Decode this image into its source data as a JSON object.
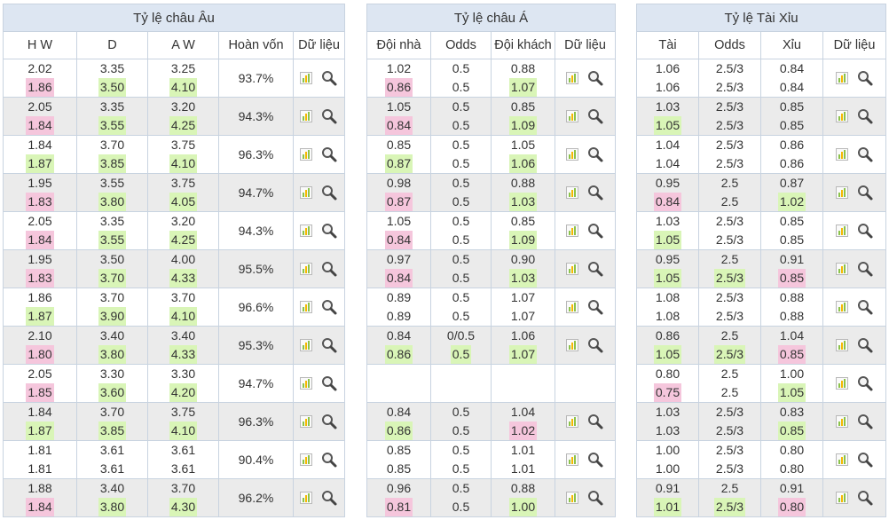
{
  "panels": {
    "eu": {
      "title": "Tỷ lệ châu Âu",
      "headers": [
        "H W",
        "D",
        "A W",
        "Hoàn vốn",
        "Dữ liệu"
      ],
      "rows": [
        {
          "c": [
            [
              "2.02",
              "1.86"
            ],
            [
              "3.35",
              "3.50"
            ],
            [
              "3.25",
              "4.10"
            ]
          ],
          "hl": [
            [
              "",
              "pink"
            ],
            [
              "",
              "green"
            ],
            [
              "",
              "green"
            ]
          ],
          "pct": "93.7%"
        },
        {
          "c": [
            [
              "2.05",
              "1.84"
            ],
            [
              "3.35",
              "3.55"
            ],
            [
              "3.20",
              "4.25"
            ]
          ],
          "hl": [
            [
              "",
              "pink"
            ],
            [
              "",
              "green"
            ],
            [
              "",
              "green"
            ]
          ],
          "pct": "94.3%"
        },
        {
          "c": [
            [
              "1.84",
              "1.87"
            ],
            [
              "3.70",
              "3.85"
            ],
            [
              "3.75",
              "4.10"
            ]
          ],
          "hl": [
            [
              "",
              "green"
            ],
            [
              "",
              "green"
            ],
            [
              "",
              "green"
            ]
          ],
          "pct": "96.3%"
        },
        {
          "c": [
            [
              "1.95",
              "1.83"
            ],
            [
              "3.55",
              "3.80"
            ],
            [
              "3.75",
              "4.05"
            ]
          ],
          "hl": [
            [
              "",
              "pink"
            ],
            [
              "",
              "green"
            ],
            [
              "",
              "green"
            ]
          ],
          "pct": "94.7%"
        },
        {
          "c": [
            [
              "2.05",
              "1.84"
            ],
            [
              "3.35",
              "3.55"
            ],
            [
              "3.20",
              "4.25"
            ]
          ],
          "hl": [
            [
              "",
              "pink"
            ],
            [
              "",
              "green"
            ],
            [
              "",
              "green"
            ]
          ],
          "pct": "94.3%"
        },
        {
          "c": [
            [
              "1.95",
              "1.83"
            ],
            [
              "3.50",
              "3.70"
            ],
            [
              "4.00",
              "4.33"
            ]
          ],
          "hl": [
            [
              "",
              "pink"
            ],
            [
              "",
              "green"
            ],
            [
              "",
              "green"
            ]
          ],
          "pct": "95.5%"
        },
        {
          "c": [
            [
              "1.86",
              "1.87"
            ],
            [
              "3.70",
              "3.90"
            ],
            [
              "3.70",
              "4.10"
            ]
          ],
          "hl": [
            [
              "",
              "green"
            ],
            [
              "",
              "green"
            ],
            [
              "",
              "green"
            ]
          ],
          "pct": "96.6%"
        },
        {
          "c": [
            [
              "2.10",
              "1.80"
            ],
            [
              "3.40",
              "3.80"
            ],
            [
              "3.40",
              "4.33"
            ]
          ],
          "hl": [
            [
              "",
              "pink"
            ],
            [
              "",
              "green"
            ],
            [
              "",
              "green"
            ]
          ],
          "pct": "95.3%"
        },
        {
          "c": [
            [
              "2.05",
              "1.85"
            ],
            [
              "3.30",
              "3.60"
            ],
            [
              "3.30",
              "4.20"
            ]
          ],
          "hl": [
            [
              "",
              "pink"
            ],
            [
              "",
              "green"
            ],
            [
              "",
              "green"
            ]
          ],
          "pct": "94.7%"
        },
        {
          "c": [
            [
              "1.84",
              "1.87"
            ],
            [
              "3.70",
              "3.85"
            ],
            [
              "3.75",
              "4.10"
            ]
          ],
          "hl": [
            [
              "",
              "green"
            ],
            [
              "",
              "green"
            ],
            [
              "",
              "green"
            ]
          ],
          "pct": "96.3%"
        },
        {
          "c": [
            [
              "1.81",
              "1.81"
            ],
            [
              "3.61",
              "3.61"
            ],
            [
              "3.61",
              "3.61"
            ]
          ],
          "hl": [
            [
              "",
              ""
            ],
            [
              "",
              ""
            ],
            [
              "",
              ""
            ]
          ],
          "pct": "90.4%"
        },
        {
          "c": [
            [
              "1.88",
              "1.84"
            ],
            [
              "3.40",
              "3.80"
            ],
            [
              "3.70",
              "4.30"
            ]
          ],
          "hl": [
            [
              "",
              "pink"
            ],
            [
              "",
              "green"
            ],
            [
              "",
              "green"
            ]
          ],
          "pct": "96.2%"
        }
      ]
    },
    "asia": {
      "title": "Tỷ lệ châu Á",
      "headers": [
        "Đội nhà",
        "Odds",
        "Đội khách",
        "Dữ liệu"
      ],
      "rows": [
        {
          "c": [
            [
              "1.02",
              "0.86"
            ],
            [
              "0.5",
              "0.5"
            ],
            [
              "0.88",
              "1.07"
            ]
          ],
          "hl": [
            [
              "",
              "pink"
            ],
            [
              "",
              ""
            ],
            [
              "",
              "green"
            ]
          ],
          "tools": true
        },
        {
          "c": [
            [
              "1.05",
              "0.84"
            ],
            [
              "0.5",
              "0.5"
            ],
            [
              "0.85",
              "1.09"
            ]
          ],
          "hl": [
            [
              "",
              "pink"
            ],
            [
              "",
              ""
            ],
            [
              "",
              "green"
            ]
          ],
          "tools": true
        },
        {
          "c": [
            [
              "0.85",
              "0.87"
            ],
            [
              "0.5",
              "0.5"
            ],
            [
              "1.05",
              "1.06"
            ]
          ],
          "hl": [
            [
              "",
              "green"
            ],
            [
              "",
              ""
            ],
            [
              "",
              "green"
            ]
          ],
          "tools": true
        },
        {
          "c": [
            [
              "0.98",
              "0.87"
            ],
            [
              "0.5",
              "0.5"
            ],
            [
              "0.88",
              "1.03"
            ]
          ],
          "hl": [
            [
              "",
              "pink"
            ],
            [
              "",
              ""
            ],
            [
              "",
              "green"
            ]
          ],
          "tools": true
        },
        {
          "c": [
            [
              "1.05",
              "0.84"
            ],
            [
              "0.5",
              "0.5"
            ],
            [
              "0.85",
              "1.09"
            ]
          ],
          "hl": [
            [
              "",
              "pink"
            ],
            [
              "",
              ""
            ],
            [
              "",
              "green"
            ]
          ],
          "tools": true
        },
        {
          "c": [
            [
              "0.97",
              "0.84"
            ],
            [
              "0.5",
              "0.5"
            ],
            [
              "0.90",
              "1.03"
            ]
          ],
          "hl": [
            [
              "",
              "pink"
            ],
            [
              "",
              ""
            ],
            [
              "",
              "green"
            ]
          ],
          "tools": true
        },
        {
          "c": [
            [
              "0.89",
              "0.89"
            ],
            [
              "0.5",
              "0.5"
            ],
            [
              "1.07",
              "1.07"
            ]
          ],
          "hl": [
            [
              "",
              ""
            ],
            [
              "",
              ""
            ],
            [
              "",
              ""
            ]
          ],
          "tools": true
        },
        {
          "c": [
            [
              "0.84",
              "0.86"
            ],
            [
              "0/0.5",
              "0.5"
            ],
            [
              "1.06",
              "1.07"
            ]
          ],
          "hl": [
            [
              "",
              "green"
            ],
            [
              "",
              "green"
            ],
            [
              "",
              "green"
            ]
          ],
          "tools": true
        },
        {
          "c": [
            [
              "",
              ""
            ],
            [
              "",
              ""
            ],
            [
              "",
              ""
            ]
          ],
          "hl": [
            [
              "",
              ""
            ],
            [
              "",
              ""
            ],
            [
              "",
              ""
            ]
          ],
          "tools": false
        },
        {
          "c": [
            [
              "0.84",
              "0.86"
            ],
            [
              "0.5",
              "0.5"
            ],
            [
              "1.04",
              "1.02"
            ]
          ],
          "hl": [
            [
              "",
              "green"
            ],
            [
              "",
              ""
            ],
            [
              "",
              "pink"
            ]
          ],
          "tools": true
        },
        {
          "c": [
            [
              "0.85",
              "0.85"
            ],
            [
              "0.5",
              "0.5"
            ],
            [
              "1.01",
              "1.01"
            ]
          ],
          "hl": [
            [
              "",
              ""
            ],
            [
              "",
              ""
            ],
            [
              "",
              ""
            ]
          ],
          "tools": true
        },
        {
          "c": [
            [
              "0.96",
              "0.81"
            ],
            [
              "0.5",
              "0.5"
            ],
            [
              "0.88",
              "1.00"
            ]
          ],
          "hl": [
            [
              "",
              "pink"
            ],
            [
              "",
              ""
            ],
            [
              "",
              "green"
            ]
          ],
          "tools": true
        }
      ]
    },
    "ou": {
      "title": "Tỷ lệ Tài Xỉu",
      "headers": [
        "Tài",
        "Odds",
        "Xỉu",
        "Dữ liệu"
      ],
      "rows": [
        {
          "c": [
            [
              "1.06",
              "1.06"
            ],
            [
              "2.5/3",
              "2.5/3"
            ],
            [
              "0.84",
              "0.84"
            ]
          ],
          "hl": [
            [
              "",
              ""
            ],
            [
              "",
              ""
            ],
            [
              "",
              ""
            ]
          ],
          "tools": true
        },
        {
          "c": [
            [
              "1.03",
              "1.05"
            ],
            [
              "2.5/3",
              "2.5/3"
            ],
            [
              "0.85",
              "0.85"
            ]
          ],
          "hl": [
            [
              "",
              "green"
            ],
            [
              "",
              ""
            ],
            [
              "",
              ""
            ]
          ],
          "tools": true
        },
        {
          "c": [
            [
              "1.04",
              "1.04"
            ],
            [
              "2.5/3",
              "2.5/3"
            ],
            [
              "0.86",
              "0.86"
            ]
          ],
          "hl": [
            [
              "",
              ""
            ],
            [
              "",
              ""
            ],
            [
              "",
              ""
            ]
          ],
          "tools": true
        },
        {
          "c": [
            [
              "0.95",
              "0.84"
            ],
            [
              "2.5",
              "2.5"
            ],
            [
              "0.87",
              "1.02"
            ]
          ],
          "hl": [
            [
              "",
              "pink"
            ],
            [
              "",
              ""
            ],
            [
              "",
              "green"
            ]
          ],
          "tools": true
        },
        {
          "c": [
            [
              "1.03",
              "1.05"
            ],
            [
              "2.5/3",
              "2.5/3"
            ],
            [
              "0.85",
              "0.85"
            ]
          ],
          "hl": [
            [
              "",
              "green"
            ],
            [
              "",
              ""
            ],
            [
              "",
              ""
            ]
          ],
          "tools": true
        },
        {
          "c": [
            [
              "0.95",
              "1.05"
            ],
            [
              "2.5",
              "2.5/3"
            ],
            [
              "0.91",
              "0.85"
            ]
          ],
          "hl": [
            [
              "",
              "green"
            ],
            [
              "",
              "green"
            ],
            [
              "",
              "pink"
            ]
          ],
          "tools": true
        },
        {
          "c": [
            [
              "1.08",
              "1.08"
            ],
            [
              "2.5/3",
              "2.5/3"
            ],
            [
              "0.88",
              "0.88"
            ]
          ],
          "hl": [
            [
              "",
              ""
            ],
            [
              "",
              ""
            ],
            [
              "",
              ""
            ]
          ],
          "tools": true
        },
        {
          "c": [
            [
              "0.86",
              "1.05"
            ],
            [
              "2.5",
              "2.5/3"
            ],
            [
              "1.04",
              "0.85"
            ]
          ],
          "hl": [
            [
              "",
              "green"
            ],
            [
              "",
              "green"
            ],
            [
              "",
              "pink"
            ]
          ],
          "tools": true
        },
        {
          "c": [
            [
              "0.80",
              "0.75"
            ],
            [
              "2.5",
              "2.5"
            ],
            [
              "1.00",
              "1.05"
            ]
          ],
          "hl": [
            [
              "",
              "pink"
            ],
            [
              "",
              ""
            ],
            [
              "",
              "green"
            ]
          ],
          "tools": true
        },
        {
          "c": [
            [
              "1.03",
              "1.03"
            ],
            [
              "2.5/3",
              "2.5/3"
            ],
            [
              "0.83",
              "0.85"
            ]
          ],
          "hl": [
            [
              "",
              ""
            ],
            [
              "",
              ""
            ],
            [
              "",
              "green"
            ]
          ],
          "tools": true
        },
        {
          "c": [
            [
              "1.00",
              "1.00"
            ],
            [
              "2.5/3",
              "2.5/3"
            ],
            [
              "0.80",
              "0.80"
            ]
          ],
          "hl": [
            [
              "",
              ""
            ],
            [
              "",
              ""
            ],
            [
              "",
              ""
            ]
          ],
          "tools": true
        },
        {
          "c": [
            [
              "0.91",
              "1.01"
            ],
            [
              "2.5",
              "2.5/3"
            ],
            [
              "0.91",
              "0.80"
            ]
          ],
          "hl": [
            [
              "",
              "green"
            ],
            [
              "",
              "green"
            ],
            [
              "",
              "pink"
            ]
          ],
          "tools": true
        }
      ]
    }
  },
  "icons": {
    "chart": "bar-chart-icon",
    "search": "magnifier-icon"
  },
  "colors": {
    "header_bg": "#dde6f2",
    "alt_row": "#ebebeb",
    "highlight_down": "#f5c6dc",
    "highlight_up": "#d9f5b7",
    "border": "#c8d3e0"
  }
}
